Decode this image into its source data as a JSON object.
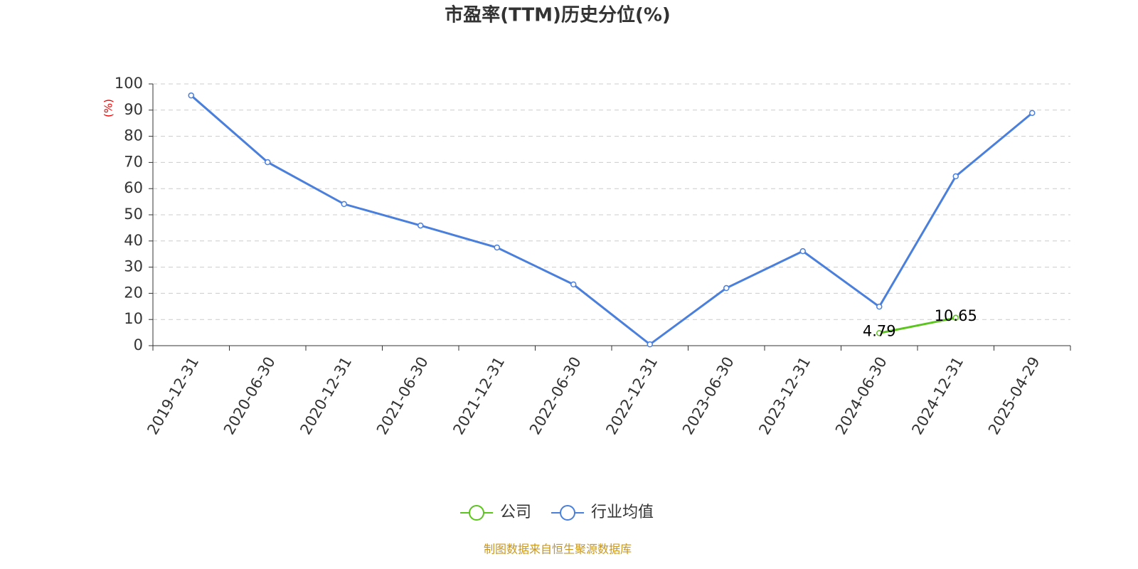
{
  "chart_data": {
    "type": "line",
    "title": "市盈率(TTM)历史分位(%)",
    "y_label": "(%)",
    "source": "制图数据来自恒生聚源数据库",
    "categories": [
      "2019-12-31",
      "2020-06-30",
      "2020-12-31",
      "2021-06-30",
      "2021-12-31",
      "2022-06-30",
      "2022-12-31",
      "2023-06-30",
      "2023-12-31",
      "2024-06-30",
      "2024-12-31",
      "2025-04-29"
    ],
    "series": [
      {
        "name": "公司",
        "color": "#5cc41e",
        "show_values": true,
        "values": [
          null,
          null,
          null,
          null,
          null,
          null,
          null,
          null,
          null,
          4.79,
          10.65,
          null
        ]
      },
      {
        "name": "行业均值",
        "color": "#4a7fdc",
        "show_values": false,
        "values": [
          95.6,
          70.1,
          54.1,
          45.9,
          37.5,
          23.4,
          0.5,
          22.0,
          36.1,
          14.9,
          64.7,
          88.9
        ]
      }
    ],
    "ylim": [
      0,
      100
    ],
    "yticks": [
      0,
      10,
      20,
      30,
      40,
      50,
      60,
      70,
      80,
      90,
      100
    ],
    "grid": true,
    "legend": "bottom"
  }
}
